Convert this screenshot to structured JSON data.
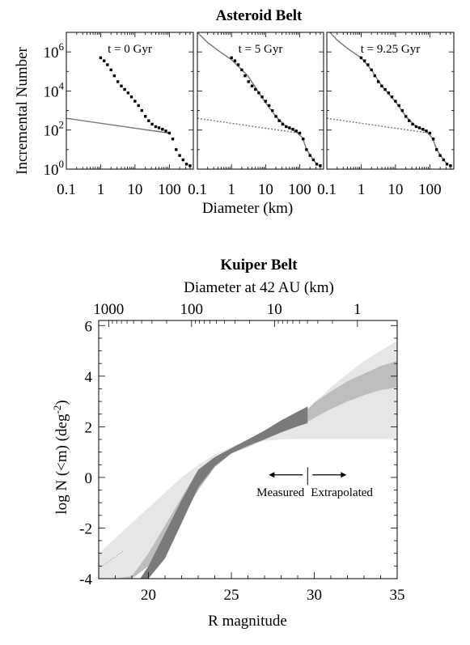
{
  "chart_data": [
    {
      "type": "scatter",
      "title": "Asteroid Belt",
      "xlabel": "Diameter (km)",
      "ylabel": "Incremental Number",
      "xscale": "log",
      "yscale": "log",
      "xlim": [
        0.1,
        500
      ],
      "ylim": [
        1,
        10000000
      ],
      "x_ticks": [
        "0.1",
        "1",
        "10",
        "100"
      ],
      "y_ticks": [
        {
          "base": "10",
          "exp": "0"
        },
        {
          "base": "10",
          "exp": "2"
        },
        {
          "base": "10",
          "exp": "4"
        },
        {
          "base": "10",
          "exp": "6"
        }
      ],
      "panels": [
        {
          "label": "t = 0 Gyr",
          "observed_points": [
            [
              1,
              500000.0
            ],
            [
              1.26,
              350000.0
            ],
            [
              1.58,
              220000.0
            ],
            [
              2,
              120000.0
            ],
            [
              2.5,
              60000.0
            ],
            [
              3.16,
              30000.0
            ],
            [
              4,
              18000.0
            ],
            [
              5,
              12000.0
            ],
            [
              6.3,
              8000
            ],
            [
              7.9,
              5000
            ],
            [
              10,
              3000
            ],
            [
              12.6,
              1800
            ],
            [
              15.8,
              1000
            ],
            [
              20,
              500
            ],
            [
              25,
              300
            ],
            [
              31.6,
              200
            ],
            [
              40,
              150
            ],
            [
              50,
              130
            ],
            [
              63,
              110
            ],
            [
              79,
              90
            ],
            [
              100,
              70
            ],
            [
              126,
              35
            ],
            [
              158,
              10
            ],
            [
              200,
              5
            ],
            [
              251,
              3
            ],
            [
              316,
              1.8
            ],
            [
              400,
              1.5
            ]
          ],
          "model_lines": [
            {
              "style": "solid",
              "points": [
                [
                  0.1,
                  400
                ],
                [
                  100,
                  70
                ]
              ]
            }
          ]
        },
        {
          "label": "t = 5 Gyr",
          "observed_points": [
            [
              1,
              500000.0
            ],
            [
              1.26,
              350000.0
            ],
            [
              1.58,
              220000.0
            ],
            [
              2,
              120000.0
            ],
            [
              2.5,
              60000.0
            ],
            [
              3.16,
              30000.0
            ],
            [
              4,
              18000.0
            ],
            [
              5,
              12000.0
            ],
            [
              6.3,
              8000
            ],
            [
              7.9,
              5000
            ],
            [
              10,
              3000
            ],
            [
              12.6,
              1800
            ],
            [
              15.8,
              1000
            ],
            [
              20,
              500
            ],
            [
              25,
              300
            ],
            [
              31.6,
              200
            ],
            [
              40,
              150
            ],
            [
              50,
              130
            ],
            [
              63,
              110
            ],
            [
              79,
              90
            ],
            [
              100,
              70
            ],
            [
              126,
              35
            ],
            [
              158,
              10
            ],
            [
              200,
              5
            ],
            [
              251,
              3
            ],
            [
              316,
              1.8
            ],
            [
              400,
              1.5
            ]
          ],
          "model_lines": [
            {
              "style": "solid",
              "points": [
                [
                  0.1,
                  10000000.0
                ],
                [
                  0.2,
                  3000000.0
                ],
                [
                  0.4,
                  1200000.0
                ],
                [
                  1,
                  400000.0
                ],
                [
                  3,
                  60000.0
                ],
                [
                  10,
                  2500
                ],
                [
                  20,
                  500
                ],
                [
                  40,
                  150
                ],
                [
                  80,
                  80
                ],
                [
                  120,
                  40
                ],
                [
                  160,
                  10
                ],
                [
                  250,
                  3
                ],
                [
                  320,
                  1.8
                ]
              ]
            },
            {
              "style": "dotted",
              "points": [
                [
                  0.1,
                  400
                ],
                [
                  100,
                  70
                ]
              ]
            }
          ]
        },
        {
          "label": "t = 9.25 Gyr",
          "observed_points": [
            [
              1,
              500000.0
            ],
            [
              1.26,
              350000.0
            ],
            [
              1.58,
              220000.0
            ],
            [
              2,
              120000.0
            ],
            [
              2.5,
              60000.0
            ],
            [
              3.16,
              30000.0
            ],
            [
              4,
              18000.0
            ],
            [
              5,
              12000.0
            ],
            [
              6.3,
              8000
            ],
            [
              7.9,
              5000
            ],
            [
              10,
              3000
            ],
            [
              12.6,
              1800
            ],
            [
              15.8,
              1000
            ],
            [
              20,
              500
            ],
            [
              25,
              300
            ],
            [
              31.6,
              200
            ],
            [
              40,
              150
            ],
            [
              50,
              130
            ],
            [
              63,
              110
            ],
            [
              79,
              90
            ],
            [
              100,
              70
            ],
            [
              126,
              35
            ],
            [
              158,
              10
            ],
            [
              200,
              5
            ],
            [
              251,
              3
            ],
            [
              316,
              1.8
            ],
            [
              400,
              1.5
            ]
          ],
          "model_lines": [
            {
              "style": "solid",
              "points": [
                [
                  0.1,
                  15000000.0
                ],
                [
                  0.2,
                  4000000.0
                ],
                [
                  0.4,
                  1500000.0
                ],
                [
                  1,
                  500000.0
                ],
                [
                  2,
                  120000.0
                ],
                [
                  4,
                  18000.0
                ],
                [
                  10,
                  2800
                ],
                [
                  20,
                  500
                ],
                [
                  40,
                  150
                ],
                [
                  80,
                  85
                ],
                [
                  120,
                  38
                ],
                [
                  160,
                  10
                ],
                [
                  250,
                  3
                ],
                [
                  320,
                  1.8
                ]
              ]
            },
            {
              "style": "dotted",
              "points": [
                [
                  0.1,
                  400
                ],
                [
                  100,
                  70
                ]
              ]
            }
          ]
        }
      ]
    },
    {
      "type": "area",
      "title": "Kuiper Belt",
      "xlabel": "R magnitude",
      "ylabel": "log N (<m) (deg-2)",
      "ylabel_parts": {
        "main": "log N (<m) (deg",
        "sup": "-2",
        "close": ")"
      },
      "top_xlabel": "Diameter at 42 AU (km)",
      "xlim": [
        17,
        35
      ],
      "ylim": [
        -4,
        6.2
      ],
      "x_ticks": [
        "20",
        "25",
        "30",
        "35"
      ],
      "y_ticks": [
        "-4",
        "-2",
        "0",
        "2",
        "4",
        "6"
      ],
      "top_x_ticks": [
        {
          "label": "1000",
          "mag": 17.6
        },
        {
          "label": "100",
          "mag": 22.6
        },
        {
          "label": "10",
          "mag": 27.6
        },
        {
          "label": "1",
          "mag": 32.6
        }
      ],
      "measured_limit_mag": 29.6,
      "annotations": {
        "left": "Measured",
        "right": "Extrapolated"
      },
      "bands": [
        {
          "name": "outer",
          "color": "#e6e6e6",
          "x": [
            17,
            18,
            19,
            20,
            21,
            22,
            23,
            24,
            25,
            26,
            27,
            28,
            29,
            29.6,
            30,
            31,
            32,
            33,
            34,
            35
          ],
          "lower": [
            -4,
            -4,
            -4,
            -3.1,
            -2.1,
            -1.1,
            -0.1,
            0.5,
            1.0,
            1.3,
            1.45,
            1.5,
            1.52,
            1.52,
            1.52,
            1.52,
            1.52,
            1.52,
            1.52,
            1.52
          ],
          "upper": [
            -3.0,
            -2.4,
            -1.8,
            -1.2,
            -0.6,
            0,
            0.5,
            0.9,
            1.2,
            1.5,
            1.8,
            2.1,
            2.5,
            2.7,
            2.95,
            3.55,
            4.1,
            4.6,
            5.0,
            5.4
          ]
        },
        {
          "name": "middle",
          "color": "#bdbdbd",
          "x": [
            17,
            18,
            19,
            20,
            21,
            22,
            23,
            24,
            25,
            26,
            27,
            28,
            29,
            29.6,
            30,
            31,
            32,
            33,
            34,
            35
          ],
          "lower": [
            -4,
            -4,
            -4,
            -3.5,
            -2.6,
            -1.6,
            -0.5,
            0.4,
            0.95,
            1.2,
            1.5,
            1.8,
            2.05,
            2.2,
            2.35,
            2.7,
            3.0,
            3.25,
            3.45,
            3.55
          ],
          "upper": [
            -4,
            -4,
            -3.9,
            -3.0,
            -1.9,
            -0.8,
            0.3,
            0.8,
            1.15,
            1.45,
            1.8,
            2.15,
            2.5,
            2.7,
            2.95,
            3.4,
            3.8,
            4.1,
            4.4,
            4.6
          ]
        },
        {
          "name": "inner",
          "color": "#7a7a7a",
          "x": [
            19.5,
            20,
            21,
            22,
            23,
            24,
            25,
            26,
            27,
            28,
            29,
            29.6
          ],
          "lower": [
            -4,
            -4,
            -3.2,
            -1.8,
            -0.4,
            0.45,
            0.95,
            1.25,
            1.5,
            1.78,
            2.02,
            2.15
          ],
          "upper": [
            -4,
            -3.5,
            -2.2,
            -0.9,
            0.3,
            0.8,
            1.15,
            1.5,
            1.85,
            2.25,
            2.6,
            2.8
          ]
        }
      ]
    }
  ]
}
